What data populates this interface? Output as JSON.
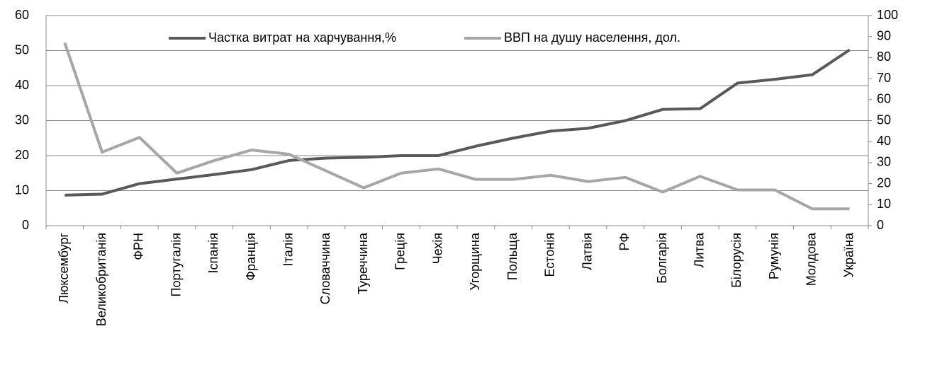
{
  "chart_data": {
    "type": "line",
    "categories": [
      "Люксембург",
      "Великобританія",
      "ФРН",
      "Португалія",
      "Іспанія",
      "Франція",
      "Італія",
      "Словаччина",
      "Туреччина",
      "Греція",
      "Чехія",
      "Угорщина",
      "Польща",
      "Естонія",
      "Латвія",
      "РФ",
      "Болгарія",
      "Литва",
      "Білорусія",
      "Румунія",
      "Молдова",
      "Україна"
    ],
    "series": [
      {
        "name": "Частка витрат на харчування,%",
        "color": "#595959",
        "values": [
          8.7,
          9,
          12,
          13.3,
          14.6,
          16,
          18.6,
          19.3,
          19.5,
          20,
          20,
          22.7,
          25,
          27,
          27.8,
          30,
          33.2,
          33.4,
          40.7,
          41.8,
          43.1,
          50.2
        ]
      },
      {
        "name": "ВВП на душу населення, дол.",
        "color": "#a6a6a6",
        "axis": "y2",
        "values": [
          87,
          35,
          42,
          25,
          31,
          36,
          34,
          26,
          18,
          25,
          27,
          22,
          22,
          24,
          21,
          23,
          16,
          23.5,
          17,
          17,
          8,
          8
        ]
      }
    ],
    "ylim": [
      0,
      60
    ],
    "yticks": [
      0,
      10,
      20,
      30,
      40,
      50,
      60
    ],
    "y2lim": [
      0,
      100
    ],
    "y2ticks": [
      0,
      10,
      20,
      30,
      40,
      50,
      60,
      70,
      80,
      90,
      100
    ],
    "grid": true,
    "legend": "top"
  }
}
